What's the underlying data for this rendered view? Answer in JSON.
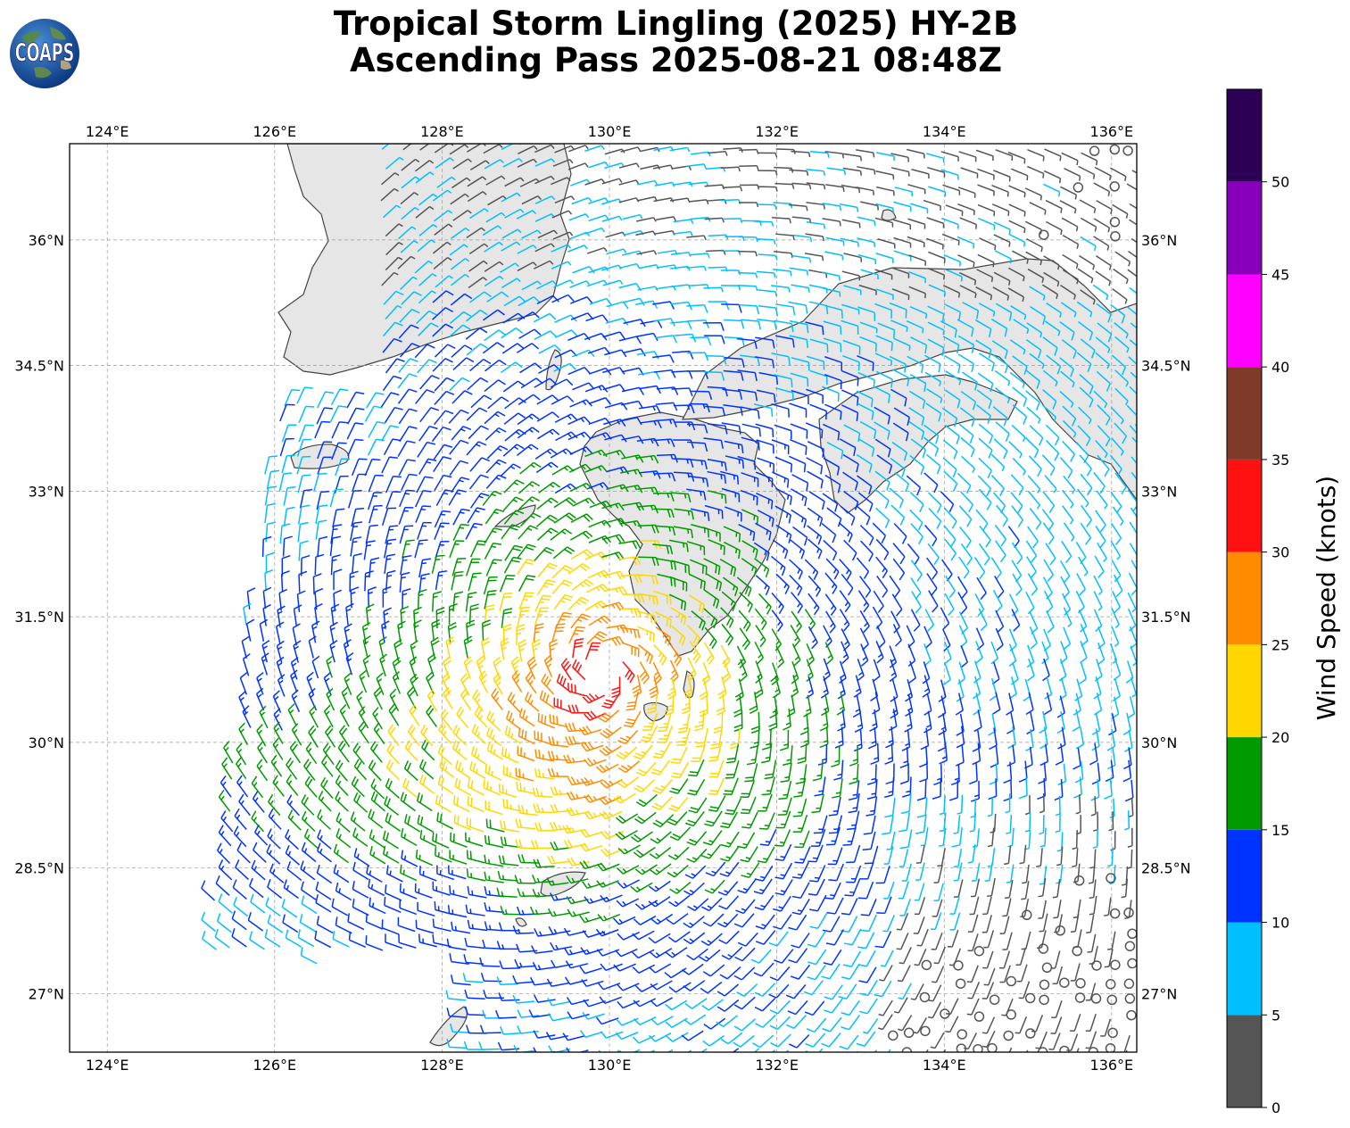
{
  "title": {
    "line1": "Tropical Storm Lingling (2025) HY-2B",
    "line2": "Ascending Pass 2025-08-21 08:48Z"
  },
  "logo": {
    "text": "COAPS",
    "icon": "earth-globe-icon"
  },
  "map": {
    "lon_range": [
      123.55,
      136.3
    ],
    "lat_range": [
      26.3,
      37.15
    ],
    "lon_ticks": [
      "124°E",
      "126°E",
      "128°E",
      "130°E",
      "132°E",
      "134°E",
      "136°E"
    ],
    "lon_values": [
      124,
      126,
      128,
      130,
      132,
      134,
      136
    ],
    "lat_ticks": [
      "27°N",
      "28.5°N",
      "30°N",
      "31.5°N",
      "33°N",
      "34.5°N",
      "36°N"
    ],
    "lat_values": [
      27,
      28.5,
      30,
      31.5,
      33,
      34.5,
      36
    ],
    "storm_center": {
      "lon": 129.9,
      "lat": 30.85
    },
    "land_color": "#e6e6e6",
    "coastline_color": "#444444",
    "grid": true
  },
  "colorbar": {
    "label": "Wind Speed (knots)",
    "ticks": [
      "0",
      "5",
      "10",
      "15",
      "20",
      "25",
      "30",
      "35",
      "40",
      "45",
      "50"
    ],
    "bins": [
      {
        "from": 0,
        "to": 5,
        "color": "#555555"
      },
      {
        "from": 5,
        "to": 10,
        "color": "#00bfff"
      },
      {
        "from": 10,
        "to": 15,
        "color": "#0033ff"
      },
      {
        "from": 15,
        "to": 20,
        "color": "#009900"
      },
      {
        "from": 20,
        "to": 25,
        "color": "#ffd700"
      },
      {
        "from": 25,
        "to": 30,
        "color": "#ff8c00"
      },
      {
        "from": 30,
        "to": 35,
        "color": "#ff1111"
      },
      {
        "from": 35,
        "to": 40,
        "color": "#7f3a2a"
      },
      {
        "from": 40,
        "to": 45,
        "color": "#ff00ff"
      },
      {
        "from": 45,
        "to": 50,
        "color": "#8800bb"
      },
      {
        "from": 50,
        "to": 55,
        "color": "#2b0055"
      }
    ]
  }
}
